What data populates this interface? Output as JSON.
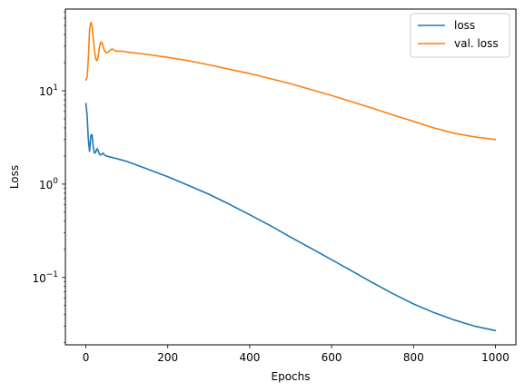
{
  "chart_data": {
    "type": "line",
    "xlabel": "Epochs",
    "ylabel": "Loss",
    "yscale": "log",
    "xlim": [
      -50,
      1050
    ],
    "ylim": [
      0.019,
      75
    ],
    "xticks": [
      0,
      200,
      400,
      600,
      800,
      1000
    ],
    "yticks": [
      {
        "value": 0.1,
        "base": "10",
        "exp": "−1"
      },
      {
        "value": 1,
        "base": "10",
        "exp": "0"
      },
      {
        "value": 10,
        "base": "10",
        "exp": "1"
      }
    ],
    "grid": false,
    "legend_position": "top-right",
    "series": [
      {
        "name": "loss",
        "color": "#1f77b4",
        "x": [
          0,
          3,
          6,
          9,
          12,
          15,
          18,
          21,
          24,
          27,
          30,
          33,
          36,
          39,
          42,
          45,
          50,
          60,
          70,
          80,
          100,
          150,
          200,
          250,
          300,
          350,
          400,
          450,
          500,
          550,
          600,
          650,
          700,
          750,
          800,
          850,
          900,
          950,
          1000
        ],
        "y": [
          7.3,
          5.5,
          3.0,
          2.25,
          3.3,
          3.4,
          2.5,
          2.15,
          2.2,
          2.4,
          2.3,
          2.1,
          2.05,
          2.1,
          2.15,
          2.05,
          2.0,
          1.95,
          1.9,
          1.85,
          1.75,
          1.45,
          1.2,
          0.97,
          0.78,
          0.61,
          0.47,
          0.36,
          0.27,
          0.205,
          0.155,
          0.117,
          0.088,
          0.067,
          0.052,
          0.042,
          0.035,
          0.03,
          0.027
        ]
      },
      {
        "name": "val. loss",
        "color": "#ff7f0e",
        "x": [
          0,
          3,
          6,
          9,
          12,
          15,
          18,
          21,
          24,
          27,
          30,
          33,
          36,
          39,
          42,
          45,
          50,
          55,
          60,
          65,
          70,
          75,
          80,
          90,
          100,
          150,
          200,
          250,
          300,
          350,
          400,
          450,
          500,
          550,
          600,
          650,
          700,
          750,
          800,
          850,
          900,
          950,
          1000
        ],
        "y": [
          13,
          14,
          22,
          45,
          54,
          50,
          37,
          27,
          22,
          21,
          23,
          29,
          33,
          33,
          30,
          27,
          25.5,
          26,
          27.5,
          28,
          27,
          26.5,
          26.5,
          26.5,
          26,
          24.5,
          22.8,
          21,
          19,
          17,
          15.3,
          13.5,
          11.9,
          10.3,
          8.9,
          7.6,
          6.5,
          5.5,
          4.7,
          4.0,
          3.5,
          3.2,
          3.0
        ]
      }
    ]
  }
}
